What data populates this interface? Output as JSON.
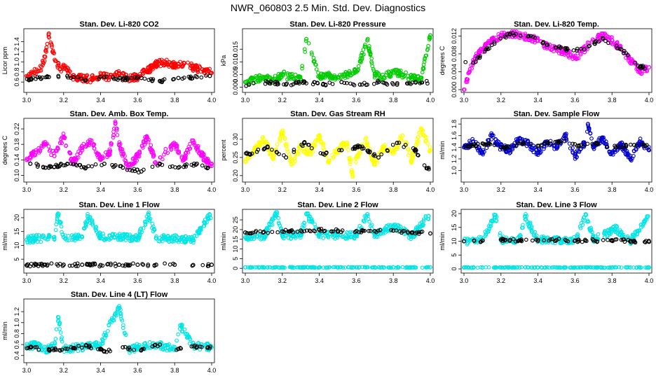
{
  "figure": {
    "title": "NWR_060803  2.5 Min. Std. Dev. Diagnostics"
  },
  "chart_data": [
    {
      "type": "scatter",
      "title": "Stan. Dev. Li-820 CO2",
      "ylabel": "Licor ppm",
      "xlim": [
        3.0,
        4.0
      ],
      "ylim": [
        0.45,
        1.6
      ],
      "xticks": [
        "3.0",
        "3.2",
        "3.4",
        "3.6",
        "3.8",
        "4.0"
      ],
      "yticks": [
        "0.6",
        "0.8",
        "1.0",
        "1.2",
        "1.4"
      ],
      "series": [
        {
          "name": "main",
          "color": "#ff0000",
          "x": [
            3.0,
            3.04,
            3.08,
            3.1,
            3.12,
            3.14,
            3.18,
            3.2,
            3.25,
            3.3,
            3.35,
            3.4,
            3.45,
            3.5,
            3.55,
            3.6,
            3.65,
            3.7,
            3.75,
            3.8,
            3.85,
            3.9,
            3.95,
            4.0
          ],
          "y": [
            0.72,
            0.78,
            0.9,
            1.1,
            1.56,
            1.2,
            0.85,
            0.92,
            0.7,
            0.68,
            0.66,
            0.72,
            0.7,
            0.75,
            0.68,
            0.7,
            0.82,
            0.95,
            1.0,
            0.92,
            0.98,
            0.88,
            0.85,
            0.78
          ]
        },
        {
          "name": "reference",
          "color": "#000000",
          "x": [
            3.02,
            3.12,
            3.22,
            3.32,
            3.42,
            3.52,
            3.62,
            3.72,
            3.82,
            3.92,
            3.99
          ],
          "y": [
            0.66,
            0.7,
            0.72,
            0.64,
            0.7,
            0.66,
            0.68,
            0.62,
            0.68,
            0.7,
            0.72
          ]
        }
      ]
    },
    {
      "type": "scatter",
      "title": "Stan. Dev. Li-820 Pressure",
      "ylabel": "kPa",
      "xlim": [
        3.0,
        4.0
      ],
      "ylim": [
        -0.001,
        0.022
      ],
      "xticks": [
        "3.0",
        "3.2",
        "3.4",
        "3.6",
        "3.8",
        "4.0"
      ],
      "yticks": [
        "0.000",
        "0.005",
        "0.010",
        "0.015"
      ],
      "series": [
        {
          "name": "main",
          "color": "#00cc00",
          "x": [
            3.0,
            3.05,
            3.1,
            3.15,
            3.2,
            3.25,
            3.3,
            3.33,
            3.4,
            3.45,
            3.5,
            3.55,
            3.6,
            3.66,
            3.7,
            3.75,
            3.8,
            3.85,
            3.9,
            3.95,
            4.0
          ],
          "y": [
            0.002,
            0.003,
            0.004,
            0.003,
            0.005,
            0.004,
            0.003,
            0.019,
            0.004,
            0.005,
            0.004,
            0.005,
            0.006,
            0.0185,
            0.005,
            0.004,
            0.006,
            0.005,
            0.004,
            0.003,
            0.0205
          ]
        },
        {
          "name": "reference",
          "color": "#000000",
          "x": [
            3.02,
            3.12,
            3.22,
            3.32,
            3.42,
            3.52,
            3.62,
            3.72,
            3.82,
            3.92
          ],
          "y": [
            0.001,
            0.002,
            0.001,
            0.002,
            0.001,
            0.002,
            0.001,
            0.002,
            0.001,
            0.002
          ]
        }
      ]
    },
    {
      "type": "scatter",
      "title": "Stan. Dev. Li-820 Temp.",
      "ylabel": "degrees C",
      "xlim": [
        3.0,
        4.0
      ],
      "ylim": [
        0.0,
        0.013
      ],
      "xticks": [
        "3.0",
        "3.2",
        "3.4",
        "3.6",
        "3.8",
        "4.0"
      ],
      "yticks": [
        "0.000",
        "0.004",
        "0.008",
        "0.012"
      ],
      "series": [
        {
          "name": "main",
          "color": "#ff00ff",
          "x": [
            3.0,
            3.03,
            3.06,
            3.1,
            3.15,
            3.2,
            3.25,
            3.3,
            3.35,
            3.4,
            3.45,
            3.5,
            3.55,
            3.6,
            3.65,
            3.7,
            3.75,
            3.8,
            3.85,
            3.9,
            3.95,
            4.0
          ],
          "y": [
            0.0,
            0.004,
            0.007,
            0.009,
            0.011,
            0.012,
            0.0125,
            0.0122,
            0.0118,
            0.011,
            0.0095,
            0.009,
            0.0085,
            0.007,
            0.009,
            0.011,
            0.012,
            0.011,
            0.009,
            0.0065,
            0.004,
            0.005
          ]
        },
        {
          "name": "reference",
          "color": "#000000",
          "x": [
            3.05,
            3.15,
            3.25,
            3.35,
            3.45,
            3.55,
            3.65,
            3.75,
            3.85,
            3.95
          ],
          "y": [
            0.006,
            0.01,
            0.0125,
            0.012,
            0.01,
            0.009,
            0.009,
            0.0115,
            0.009,
            0.005
          ]
        }
      ]
    },
    {
      "type": "scatter",
      "title": "Stan. Dev. Amb. Box Temp.",
      "ylabel": "degrees C",
      "xlim": [
        3.0,
        4.0
      ],
      "ylim": [
        0.09,
        0.24
      ],
      "xticks": [
        "3.0",
        "3.2",
        "3.4",
        "3.6",
        "3.8",
        "4.0"
      ],
      "yticks": [
        "0.10",
        "0.14",
        "0.18",
        "0.22"
      ],
      "series": [
        {
          "name": "main",
          "color": "#ff00ff",
          "x": [
            3.0,
            3.05,
            3.1,
            3.15,
            3.2,
            3.25,
            3.3,
            3.35,
            3.4,
            3.45,
            3.48,
            3.5,
            3.55,
            3.6,
            3.65,
            3.7,
            3.75,
            3.8,
            3.85,
            3.9,
            3.95,
            4.0
          ],
          "y": [
            0.14,
            0.16,
            0.18,
            0.15,
            0.2,
            0.13,
            0.17,
            0.19,
            0.14,
            0.16,
            0.235,
            0.18,
            0.12,
            0.15,
            0.2,
            0.13,
            0.16,
            0.18,
            0.14,
            0.19,
            0.15,
            0.13
          ]
        },
        {
          "name": "reference",
          "color": "#000000",
          "x": [
            3.02,
            3.12,
            3.22,
            3.32,
            3.42,
            3.52,
            3.62,
            3.72,
            3.82,
            3.92,
            3.98
          ],
          "y": [
            0.13,
            0.12,
            0.13,
            0.12,
            0.13,
            0.12,
            0.11,
            0.13,
            0.12,
            0.13,
            0.12
          ]
        }
      ]
    },
    {
      "type": "scatter",
      "title": "Stan. Dev. Gas Stream RH",
      "ylabel": "percent",
      "xlim": [
        3.0,
        4.0
      ],
      "ylim": [
        0.19,
        0.35
      ],
      "xticks": [
        "3.0",
        "3.2",
        "3.4",
        "3.6",
        "3.8",
        "4.0"
      ],
      "yticks": [
        "0.20",
        "0.25",
        "0.30"
      ],
      "series": [
        {
          "name": "main",
          "color": "#ffff00",
          "x": [
            3.0,
            3.05,
            3.1,
            3.15,
            3.2,
            3.25,
            3.3,
            3.35,
            3.4,
            3.45,
            3.5,
            3.55,
            3.58,
            3.6,
            3.65,
            3.7,
            3.75,
            3.8,
            3.85,
            3.9,
            3.95,
            4.0
          ],
          "y": [
            0.24,
            0.27,
            0.3,
            0.25,
            0.32,
            0.23,
            0.28,
            0.26,
            0.31,
            0.24,
            0.27,
            0.29,
            0.2,
            0.25,
            0.3,
            0.23,
            0.28,
            0.26,
            0.31,
            0.24,
            0.33,
            0.27
          ]
        },
        {
          "name": "reference",
          "color": "#000000",
          "x": [
            3.02,
            3.12,
            3.22,
            3.32,
            3.42,
            3.52,
            3.62,
            3.72,
            3.82,
            3.92,
            3.98
          ],
          "y": [
            0.26,
            0.28,
            0.25,
            0.29,
            0.26,
            0.27,
            0.28,
            0.25,
            0.29,
            0.27,
            0.22
          ]
        }
      ]
    },
    {
      "type": "scatter",
      "title": "Stan. Dev. Sample Flow",
      "ylabel": "ml/min",
      "xlim": [
        3.0,
        4.0
      ],
      "ylim": [
        0.85,
        1.85
      ],
      "xticks": [
        "3.0",
        "3.2",
        "3.4",
        "3.6",
        "3.8",
        "4.0"
      ],
      "yticks": [
        "1.0",
        "1.2",
        "1.4",
        "1.6",
        "1.8"
      ],
      "series": [
        {
          "name": "main",
          "color": "#0000cc",
          "x": [
            3.0,
            3.05,
            3.1,
            3.15,
            3.2,
            3.25,
            3.3,
            3.35,
            3.4,
            3.45,
            3.5,
            3.55,
            3.6,
            3.65,
            3.67,
            3.7,
            3.75,
            3.8,
            3.85,
            3.9,
            3.95,
            4.0
          ],
          "y": [
            1.4,
            1.5,
            1.3,
            1.6,
            1.4,
            1.35,
            1.55,
            1.45,
            1.3,
            1.5,
            1.4,
            1.6,
            1.25,
            1.45,
            1.8,
            1.4,
            1.55,
            1.3,
            1.45,
            1.2,
            1.5,
            1.35
          ]
        },
        {
          "name": "reference",
          "color": "#000000",
          "x": [
            3.02,
            3.12,
            3.22,
            3.32,
            3.42,
            3.52,
            3.62,
            3.72,
            3.82,
            3.92,
            3.98
          ],
          "y": [
            1.42,
            1.45,
            1.4,
            1.48,
            1.44,
            1.5,
            1.42,
            1.46,
            1.4,
            1.44,
            1.42
          ]
        }
      ]
    },
    {
      "type": "scatter",
      "title": "Stan. Dev. Line 1 Flow",
      "ylabel": "ml/min",
      "xlim": [
        3.0,
        4.0
      ],
      "ylim": [
        1,
        22
      ],
      "xticks": [
        "3.0",
        "3.2",
        "3.4",
        "3.6",
        "3.8",
        "4.0"
      ],
      "yticks": [
        "5",
        "10",
        "15",
        "20"
      ],
      "series": [
        {
          "name": "main",
          "color": "#00e5e5",
          "x": [
            3.0,
            3.05,
            3.1,
            3.15,
            3.17,
            3.2,
            3.3,
            3.33,
            3.4,
            3.5,
            3.6,
            3.66,
            3.7,
            3.8,
            3.9,
            3.99
          ],
          "y": [
            12,
            12.5,
            12.5,
            13,
            21.5,
            13,
            13,
            20.5,
            13,
            13,
            12.5,
            21,
            12.5,
            12.5,
            12,
            21
          ]
        },
        {
          "name": "reference",
          "color": "#000000",
          "x": [
            3.0,
            3.1,
            3.2,
            3.3,
            3.4,
            3.5,
            3.6,
            3.7,
            3.8,
            3.9,
            4.0
          ],
          "y": [
            2.8,
            3,
            3,
            3,
            2.9,
            3,
            3,
            3,
            3,
            2.9,
            3
          ]
        }
      ]
    },
    {
      "type": "scatter",
      "title": "Stan. Dev. Line 2 Flow",
      "ylabel": "ml/min",
      "xlim": [
        3.0,
        4.0
      ],
      "ylim": [
        -1,
        29
      ],
      "xticks": [
        "3.0",
        "3.2",
        "3.4",
        "3.6",
        "3.8",
        "4.0"
      ],
      "yticks": [
        "0",
        "5",
        "10",
        "15",
        "20",
        "25"
      ],
      "series": [
        {
          "name": "main",
          "color": "#00e5e5",
          "x": [
            3.0,
            3.1,
            3.17,
            3.2,
            3.3,
            3.33,
            3.4,
            3.5,
            3.6,
            3.66,
            3.7,
            3.8,
            3.9,
            3.99
          ],
          "y": [
            16,
            16.5,
            28,
            17,
            17,
            28,
            17.5,
            17,
            17,
            28,
            17,
            22,
            16.5,
            27
          ]
        },
        {
          "name": "baseline",
          "color": "#00e5e5",
          "x": [
            3.0,
            3.1,
            3.2,
            3.3,
            3.4,
            3.5,
            3.6,
            3.7,
            3.8,
            3.9,
            4.0
          ],
          "y": [
            0.5,
            0.5,
            0.5,
            0.5,
            0.5,
            0.5,
            0.5,
            0.5,
            0.5,
            0.5,
            0.5
          ]
        },
        {
          "name": "reference",
          "color": "#000000",
          "x": [
            3.0,
            3.1,
            3.2,
            3.3,
            3.4,
            3.5,
            3.6,
            3.7,
            3.8,
            3.9,
            4.0
          ],
          "y": [
            18.5,
            18.8,
            19,
            19.5,
            19.8,
            19.5,
            19.2,
            19.2,
            19.5,
            18.5,
            18
          ]
        }
      ]
    },
    {
      "type": "scatter",
      "title": "Stan. Dev. Line 3 Flow",
      "ylabel": "ml/min",
      "xlim": [
        3.0,
        4.0
      ],
      "ylim": [
        -0.5,
        20.5
      ],
      "xticks": [
        "3.0",
        "3.2",
        "3.4",
        "3.6",
        "3.8",
        "4.0"
      ],
      "yticks": [
        "0",
        "5",
        "10",
        "15",
        "20"
      ],
      "series": [
        {
          "name": "main",
          "color": "#00e5e5",
          "x": [
            3.0,
            3.1,
            3.17,
            3.2,
            3.3,
            3.33,
            3.4,
            3.5,
            3.6,
            3.66,
            3.7,
            3.82,
            3.9,
            3.99
          ],
          "y": [
            10,
            10.5,
            19.5,
            10.5,
            10.5,
            19,
            10.5,
            10.5,
            10.5,
            19.5,
            10.5,
            14.5,
            10,
            19
          ]
        },
        {
          "name": "baseline",
          "color": "#00e5e5",
          "x": [
            3.0,
            3.1,
            3.2,
            3.3,
            3.4,
            3.5,
            3.6,
            3.7,
            3.8,
            3.9,
            4.0
          ],
          "y": [
            0.5,
            0.5,
            0.5,
            0.5,
            0.5,
            0.5,
            0.5,
            0.5,
            0.5,
            0.5,
            0.5
          ]
        },
        {
          "name": "reference",
          "color": "#000000",
          "x": [
            3.0,
            3.1,
            3.2,
            3.3,
            3.4,
            3.5,
            3.6,
            3.7,
            3.8,
            3.9,
            4.0
          ],
          "y": [
            10,
            10.2,
            10.5,
            10.3,
            10.5,
            10.4,
            10.2,
            10.3,
            10.2,
            10.1,
            9.8
          ]
        }
      ]
    },
    {
      "type": "scatter",
      "title": "Stan. Dev. Line 4 (LT) Flow",
      "ylabel": "ml/min",
      "xlim": [
        3.0,
        4.0
      ],
      "ylim": [
        0.32,
        1.38
      ],
      "xticks": [
        "3.0",
        "3.2",
        "3.4",
        "3.6",
        "3.8",
        "4.0"
      ],
      "yticks": [
        "0.4",
        "0.6",
        "0.8",
        "1.0",
        "1.2"
      ],
      "series": [
        {
          "name": "main",
          "color": "#00e5e5",
          "x": [
            3.0,
            3.05,
            3.1,
            3.15,
            3.17,
            3.2,
            3.3,
            3.4,
            3.5,
            3.55,
            3.6,
            3.7,
            3.8,
            3.83,
            3.9,
            4.0
          ],
          "y": [
            0.55,
            0.6,
            0.5,
            0.58,
            1.1,
            0.52,
            0.55,
            0.6,
            1.3,
            0.5,
            0.55,
            0.6,
            0.52,
            0.95,
            0.58,
            0.55
          ]
        },
        {
          "name": "reference",
          "color": "#000000",
          "x": [
            3.02,
            3.12,
            3.22,
            3.32,
            3.42,
            3.52,
            3.62,
            3.72,
            3.82,
            3.92,
            3.98
          ],
          "y": [
            0.55,
            0.5,
            0.52,
            0.58,
            0.48,
            0.55,
            0.5,
            0.6,
            0.52,
            0.56,
            0.55
          ]
        }
      ]
    }
  ]
}
